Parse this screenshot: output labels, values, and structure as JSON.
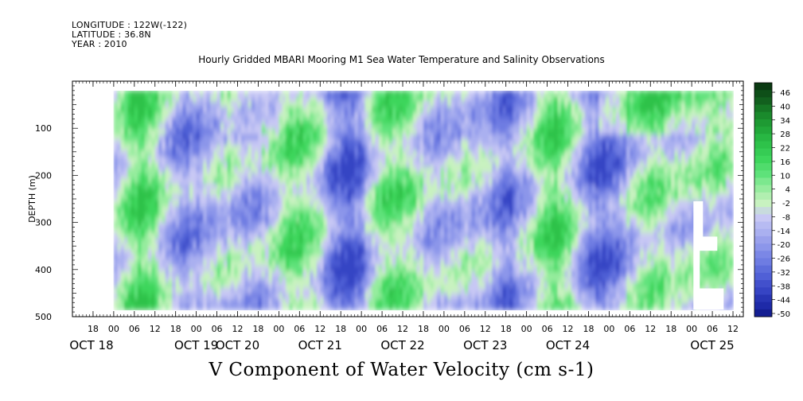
{
  "header": {
    "longitude": "LONGITUDE : 122W(-122)",
    "latitude": "LATITUDE : 36.8N",
    "year": "YEAR : 2010"
  },
  "chart_data": {
    "type": "heatmap",
    "title": "Hourly Gridded MBARI Mooring M1 Sea Water Temperature and Salinity Observations",
    "subtitle": "V Component of Water Velocity (cm s-1)",
    "ylabel": "DEPTH (m)",
    "ylim": [
      500,
      0
    ],
    "y_ticks": [
      "100",
      "200",
      "300",
      "400",
      "500"
    ],
    "x_hour_ticks": [
      "18",
      "00",
      "06",
      "12",
      "18",
      "00",
      "06",
      "12",
      "18",
      "00",
      "06",
      "12",
      "18",
      "00",
      "06",
      "12",
      "18",
      "00",
      "06",
      "12",
      "18",
      "00",
      "06",
      "12",
      "18",
      "00",
      "06",
      "12",
      "18",
      "00",
      "06",
      "12"
    ],
    "x_date_labels": [
      "OCT 18",
      "OCT 19",
      "OCT 20",
      "OCT 21",
      "OCT 22",
      "OCT 23",
      "OCT 24",
      "OCT 25"
    ],
    "time_range": [
      "2010-10-17 12:00",
      "2010-10-25 15:00"
    ],
    "data_time_range": [
      "2010-10-18 00:00",
      "2010-10-25 12:00"
    ],
    "data_depth_range": [
      20,
      485
    ],
    "grid": false,
    "colorbar": {
      "labels": [
        "46",
        "40",
        "34",
        "28",
        "22",
        "16",
        "10",
        "4",
        "-2",
        "-8",
        "-14",
        "-20",
        "-26",
        "-32",
        "-38",
        "-44",
        "-50"
      ],
      "colors": [
        "#0a3a12",
        "#12601e",
        "#1a8a2c",
        "#22a83a",
        "#2ec24a",
        "#3ed65c",
        "#5ee27a",
        "#96ec9e",
        "#c8f2c0",
        "#c8c8f4",
        "#aab0f0",
        "#8c96ea",
        "#6e7ce2",
        "#5060d6",
        "#3644c4",
        "#1e2aa8",
        "#0c1480"
      ]
    },
    "missing_data_color": "#ffffff"
  }
}
